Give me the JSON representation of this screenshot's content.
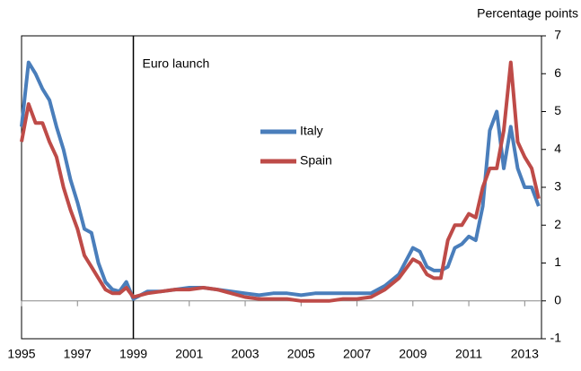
{
  "chart_data": {
    "type": "line",
    "y_axis_label": "Percentage points",
    "annotation": {
      "text": "Euro launch",
      "x": 1999
    },
    "x": [
      1995,
      1995.25,
      1995.5,
      1995.75,
      1996,
      1996.25,
      1996.5,
      1996.75,
      1997,
      1997.25,
      1997.5,
      1997.75,
      1998,
      1998.25,
      1998.5,
      1998.75,
      1999,
      1999.5,
      2000,
      2000.5,
      2001,
      2001.5,
      2002,
      2002.5,
      2003,
      2003.5,
      2004,
      2004.5,
      2005,
      2005.5,
      2006,
      2006.5,
      2007,
      2007.5,
      2008,
      2008.5,
      2009,
      2009.25,
      2009.5,
      2009.75,
      2010,
      2010.25,
      2010.5,
      2010.75,
      2011,
      2011.25,
      2011.5,
      2011.75,
      2012,
      2012.25,
      2012.5,
      2012.75,
      2013,
      2013.25,
      2013.5
    ],
    "series": [
      {
        "name": "Italy",
        "color": "#4a7ebb",
        "values": [
          4.6,
          6.3,
          6.0,
          5.6,
          5.3,
          4.6,
          4.0,
          3.2,
          2.6,
          1.9,
          1.8,
          1.0,
          0.5,
          0.3,
          0.25,
          0.5,
          0.05,
          0.25,
          0.25,
          0.3,
          0.35,
          0.35,
          0.3,
          0.25,
          0.2,
          0.15,
          0.2,
          0.2,
          0.15,
          0.2,
          0.2,
          0.2,
          0.2,
          0.2,
          0.4,
          0.7,
          1.4,
          1.3,
          0.9,
          0.8,
          0.8,
          0.9,
          1.4,
          1.5,
          1.7,
          1.6,
          2.5,
          4.5,
          5.0,
          3.5,
          4.6,
          3.5,
          3.0,
          3.0,
          2.5
        ]
      },
      {
        "name": "Spain",
        "color": "#be4b48",
        "values": [
          4.2,
          5.2,
          4.7,
          4.7,
          4.2,
          3.8,
          3.0,
          2.4,
          1.9,
          1.2,
          0.9,
          0.6,
          0.3,
          0.2,
          0.2,
          0.35,
          0.1,
          0.2,
          0.25,
          0.3,
          0.3,
          0.35,
          0.3,
          0.2,
          0.1,
          0.05,
          0.05,
          0.05,
          0.0,
          0.0,
          0.0,
          0.05,
          0.05,
          0.1,
          0.3,
          0.6,
          1.1,
          1.0,
          0.7,
          0.6,
          0.6,
          1.6,
          2.0,
          2.0,
          2.3,
          2.2,
          3.0,
          3.5,
          3.5,
          4.5,
          6.3,
          4.2,
          3.8,
          3.5,
          2.7
        ]
      }
    ],
    "xlim": [
      1995,
      2013.6
    ],
    "xticks": [
      1995,
      1997,
      1999,
      2001,
      2003,
      2005,
      2007,
      2009,
      2011,
      2013
    ],
    "ylim": [
      -1,
      7
    ],
    "yticks": [
      -1,
      0,
      1,
      2,
      3,
      4,
      5,
      6,
      7
    ]
  }
}
